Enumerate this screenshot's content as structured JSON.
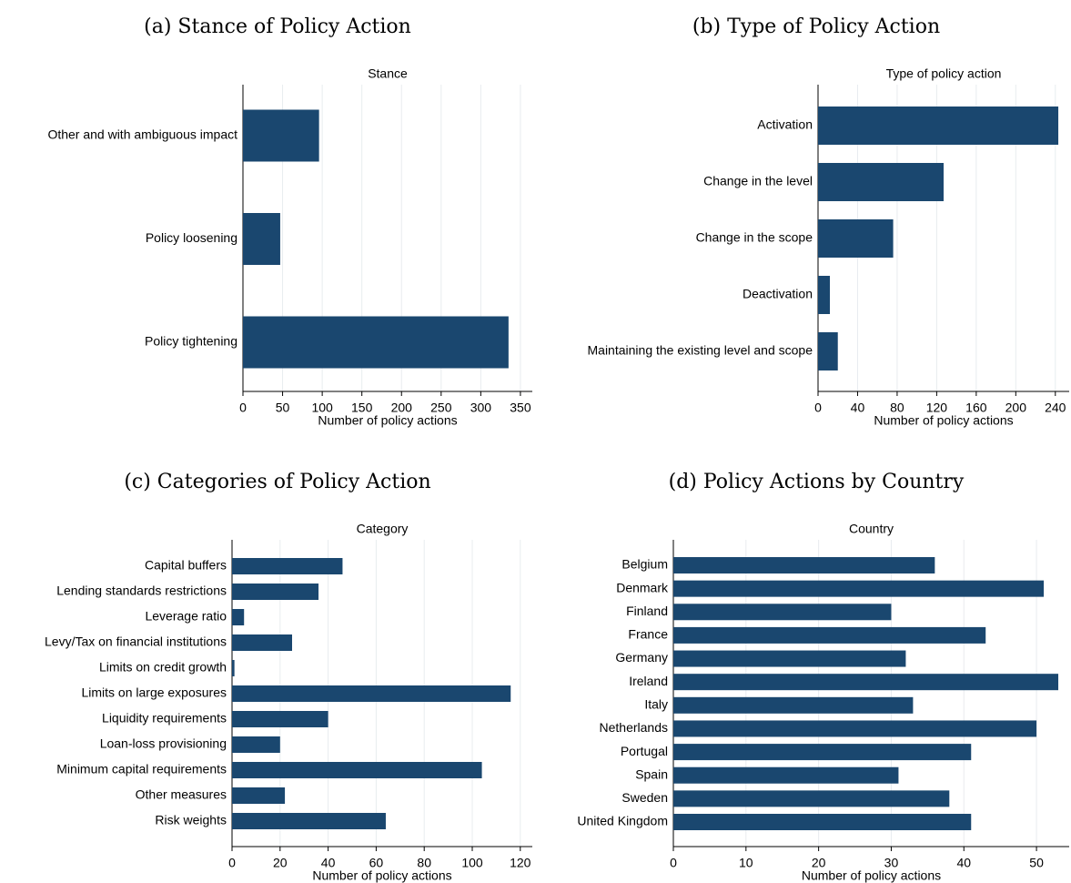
{
  "chart_data": [
    {
      "type": "barh",
      "caption": "(a) Stance of Policy Action",
      "title": "Stance",
      "x_label": "Number of policy actions",
      "categories": [
        "Other and with ambiguous impact",
        "Policy loosening",
        "Policy tightening"
      ],
      "values": [
        96,
        47,
        335
      ],
      "color": "#1a476f",
      "xlim": [
        0,
        365
      ],
      "xticks": [
        0,
        50,
        100,
        150,
        200,
        250,
        300,
        350
      ],
      "grid": true
    },
    {
      "type": "barh",
      "caption": "(b) Type of Policy Action",
      "title": "Type of policy action",
      "x_label": "Number of policy actions",
      "categories": [
        "Activation",
        "Change in the level",
        "Change in the scope",
        "Deactivation",
        "Maintaining the existing level and scope"
      ],
      "values": [
        243,
        127,
        76,
        12,
        20
      ],
      "color": "#1a476f",
      "xlim": [
        0,
        254
      ],
      "xticks": [
        0,
        40,
        80,
        120,
        160,
        200,
        240
      ],
      "grid": true
    },
    {
      "type": "barh",
      "caption": "(c) Categories of Policy Action",
      "title": "Category",
      "x_label": "Number of policy actions",
      "categories": [
        "Capital buffers",
        "Lending standards restrictions",
        "Leverage ratio",
        "Levy/Tax on financial institutions",
        "Limits on credit growth",
        "Limits on large exposures",
        "Liquidity requirements",
        "Loan-loss provisioning",
        "Minimum capital requirements",
        "Other measures",
        "Risk weights"
      ],
      "values": [
        46,
        36,
        5,
        25,
        1,
        116,
        40,
        20,
        104,
        22,
        64
      ],
      "color": "#1a476f",
      "xlim": [
        0,
        125
      ],
      "xticks": [
        0,
        20,
        40,
        60,
        80,
        100,
        120
      ],
      "grid": true
    },
    {
      "type": "barh",
      "caption": "(d) Policy Actions by Country",
      "title": "Country",
      "x_label": "Number of policy actions",
      "categories": [
        "Belgium",
        "Denmark",
        "Finland",
        "France",
        "Germany",
        "Ireland",
        "Italy",
        "Netherlands",
        "Portugal",
        "Spain",
        "Sweden",
        "United Kingdom"
      ],
      "values": [
        36,
        51,
        30,
        43,
        32,
        53,
        33,
        50,
        41,
        31,
        38,
        41
      ],
      "color": "#1a476f",
      "xlim": [
        0,
        54.5
      ],
      "xticks": [
        0,
        10,
        20,
        30,
        40,
        50
      ],
      "grid": true
    }
  ]
}
